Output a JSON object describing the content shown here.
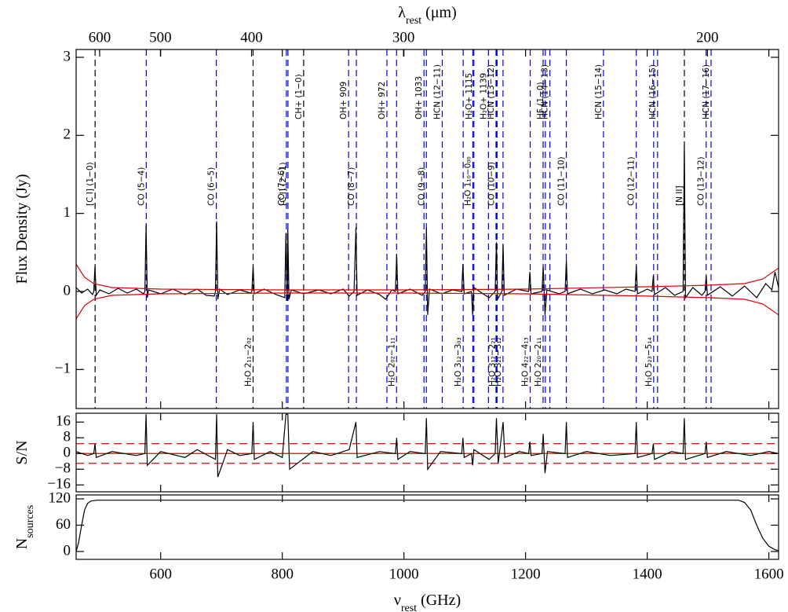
{
  "chart_data": [
    {
      "type": "line",
      "ylabel": "Flux Density (Jy)",
      "x2label": {
        "main": "λ",
        "sub": "rest",
        "unit": " (μm)"
      },
      "x2ticks": [
        600,
        500,
        400,
        300,
        200
      ],
      "ylim": [
        -1.5,
        3.1
      ],
      "yticks": [
        {
          "value": -1,
          "label": "−1"
        },
        0,
        1,
        2,
        3
      ],
      "series": [
        {
          "color": "#000000",
          "x": [
            461,
            470,
            480,
            488,
            490,
            492,
            494,
            500,
            515,
            530,
            545,
            560,
            572,
            574,
            576,
            578,
            580,
            600,
            620,
            640,
            660,
            675,
            688,
            690,
            692,
            694,
            697,
            710,
            730,
            748,
            750,
            752,
            754,
            770,
            790,
            804,
            806,
            808,
            809,
            811,
            815,
            835,
            860,
            880,
            900,
            910,
            918,
            921,
            923,
            940,
            960,
            970,
            980,
            986,
            988,
            990,
            1010,
            1030,
            1035,
            1037,
            1039,
            1042,
            1062,
            1080,
            1095,
            1097,
            1099,
            1111,
            1113,
            1115,
            1130,
            1140,
            1150,
            1152,
            1154,
            1161,
            1163,
            1165,
            1185,
            1205,
            1207,
            1209,
            1227,
            1229,
            1232,
            1235,
            1255,
            1265,
            1267,
            1269,
            1290,
            1310,
            1330,
            1350,
            1365,
            1380,
            1382,
            1384,
            1400,
            1408,
            1410,
            1412,
            1430,
            1445,
            1459,
            1461,
            1463,
            1475,
            1490,
            1495,
            1497,
            1499,
            1520,
            1540,
            1560,
            1580,
            1595,
            1605,
            1610,
            1616
          ],
          "values": [
            0.05,
            -0.02,
            0.03,
            -0.04,
            0,
            0.32,
            -0.05,
            0.02,
            -0.03,
            0.04,
            -0.02,
            0.03,
            -0.03,
            0,
            0.85,
            -0.08,
            0.02,
            -0.03,
            0.03,
            -0.04,
            0.03,
            -0.05,
            -0.06,
            0,
            0.9,
            -0.1,
            0.03,
            -0.04,
            0.02,
            -0.02,
            0,
            0.32,
            -0.03,
            0.03,
            -0.04,
            -0.08,
            0.75,
            -0.12,
            0.8,
            -0.1,
            0.02,
            -0.03,
            0.02,
            -0.03,
            0.03,
            -0.06,
            0,
            0.82,
            -0.05,
            0.02,
            -0.04,
            -0.1,
            0.02,
            0,
            0.47,
            -0.03,
            0.03,
            -0.05,
            0,
            0.82,
            -0.3,
            0.03,
            -0.03,
            0.02,
            0,
            0.35,
            -0.03,
            0,
            -0.3,
            0.05,
            -0.03,
            -0.08,
            0,
            0.63,
            -0.1,
            0,
            0.6,
            -0.05,
            0.03,
            0,
            0.25,
            -0.03,
            0,
            0.32,
            -0.3,
            0.02,
            -0.03,
            0,
            0.4,
            -0.03,
            0.03,
            -0.03,
            0.02,
            -0.03,
            0.03,
            0,
            0.33,
            -0.03,
            0.03,
            0,
            0.2,
            -0.04,
            0.05,
            -0.05,
            0,
            1.88,
            -0.08,
            0.05,
            -0.05,
            0,
            0.2,
            -0.05,
            0.06,
            -0.06,
            0.07,
            -0.08,
            0.1,
            0.02,
            0.25,
            0.05
          ]
        },
        {
          "color": "#e00000",
          "x": [
            461,
            475,
            490,
            520,
            600,
            800,
            1000,
            1200,
            1400,
            1500,
            1560,
            1590,
            1616
          ],
          "values": [
            0.35,
            0.18,
            0.1,
            0.05,
            0.03,
            0.02,
            0.02,
            0.03,
            0.06,
            0.08,
            0.1,
            0.16,
            0.3
          ]
        },
        {
          "color": "#e00000",
          "x": [
            461,
            475,
            490,
            520,
            600,
            800,
            1000,
            1200,
            1400,
            1500,
            1560,
            1590,
            1616
          ],
          "values": [
            -0.35,
            -0.18,
            -0.1,
            -0.05,
            -0.03,
            -0.02,
            -0.02,
            -0.03,
            -0.06,
            -0.08,
            -0.1,
            -0.16,
            -0.3
          ]
        }
      ],
      "lines": {
        "upper": [
          {
            "freq": 835.1,
            "label": "CH+ (1−0)",
            "color": "#000000"
          },
          {
            "freq": 909,
            "label": "OH+ 909",
            "color": "#0000e0"
          },
          {
            "freq": 972,
            "label": "OH+ 972",
            "color": "#0000e0"
          },
          {
            "freq": 1033,
            "label": "OH+ 1033",
            "color": "#0000e0"
          },
          {
            "freq": 1063,
            "label": "HCN (12−11)",
            "color": "#0000e0"
          },
          {
            "freq": 1115,
            "label": "H₂O+ 1115",
            "color": "#0000e0"
          },
          {
            "freq": 1139,
            "label": "H₂O+ 1139",
            "color": "#0000e0"
          },
          {
            "freq": 1151.4,
            "label": "HCN (13−12)",
            "color": "#0000e0"
          },
          {
            "freq": 1232.5,
            "label": "HF (1−0)",
            "color": "#0000e0"
          },
          {
            "freq": 1240,
            "label": "HCN (14−13)",
            "color": "#0000e0"
          },
          {
            "freq": 1328,
            "label": "HCN (15−14)",
            "color": "#0000e0"
          },
          {
            "freq": 1417,
            "label": "HCN (16−15)",
            "color": "#0000e0"
          },
          {
            "freq": 1505,
            "label": "HCN (17−16)",
            "color": "#0000e0"
          }
        ],
        "middle": [
          {
            "freq": 492.2,
            "label": "[C I] (1−0)",
            "color": "#000000"
          },
          {
            "freq": 576.3,
            "label": "CO (5−4)",
            "color": "#0000e0"
          },
          {
            "freq": 691.5,
            "label": "CO (6−5)",
            "color": "#0000e0"
          },
          {
            "freq": 806.7,
            "label": "CO (7−6)",
            "color": "#0000e0"
          },
          {
            "freq": 809.3,
            "label": "[C I] (2−1)",
            "color": "#0000e0"
          },
          {
            "freq": 921.8,
            "label": "CO (8−7)",
            "color": "#0000e0"
          },
          {
            "freq": 1036.9,
            "label": "CO (9−8)",
            "color": "#0000e0"
          },
          {
            "freq": 1113.3,
            "label": "H₂O 1₁₀−0₀₀",
            "color": "#0000e0"
          },
          {
            "freq": 1152,
            "label": "CO (10−9)",
            "color": "#0000e0"
          },
          {
            "freq": 1267,
            "label": "CO (11−10)",
            "color": "#0000e0"
          },
          {
            "freq": 1382,
            "label": "CO (12−11)",
            "color": "#0000e0"
          },
          {
            "freq": 1461.1,
            "label": "[N II]",
            "color": "#000000"
          },
          {
            "freq": 1496.9,
            "label": "CO (13−12)",
            "color": "#0000e0"
          }
        ],
        "lower": [
          {
            "freq": 752,
            "label": "H₂O 2₁₁−2₀₂",
            "color": "#000000"
          },
          {
            "freq": 987.9,
            "label": "H₂O 2₀₂−1₁₁",
            "color": "#0000e0"
          },
          {
            "freq": 1097.4,
            "label": "H₂O 3₁₂−3₀₃",
            "color": "#0000e0"
          },
          {
            "freq": 1153.1,
            "label": "H₂O 3₁₂−2₂₁",
            "color": "#0000e0"
          },
          {
            "freq": 1162.9,
            "label": "H₂O 3₂₁−3₁₂",
            "color": "#0000e0"
          },
          {
            "freq": 1207.6,
            "label": "H₂O 4₂₂−4₁₃",
            "color": "#0000e0"
          },
          {
            "freq": 1228.8,
            "label": "H₂O 2₂₀−2₁₁",
            "color": "#0000e0"
          },
          {
            "freq": 1410.6,
            "label": "H₂O 5₂₃−5₁₄",
            "color": "#0000e0"
          }
        ]
      }
    },
    {
      "type": "line",
      "ylabel": "S/N",
      "ylim": [
        -19.5,
        20.5
      ],
      "yticks": [
        {
          "value": -16,
          "label": "−16"
        },
        {
          "value": -8,
          "label": "−8"
        },
        0,
        8,
        16
      ],
      "hlines": [
        {
          "value": 5,
          "color": "#e00000",
          "dash": true
        },
        {
          "value": -5,
          "color": "#e00000",
          "dash": true
        },
        {
          "value": 0,
          "color": "#e00000",
          "dash": false
        }
      ],
      "series": [
        {
          "color": "#000000",
          "x": [
            461,
            480,
            490,
            492,
            494,
            520,
            560,
            574,
            576,
            578,
            600,
            640,
            660,
            690,
            692,
            694,
            710,
            730,
            750,
            752,
            754,
            780,
            800,
            806,
            809,
            812,
            850,
            880,
            910,
            921,
            923,
            960,
            986,
            988,
            990,
            1010,
            1035,
            1037,
            1039,
            1060,
            1095,
            1097,
            1099,
            1111,
            1113,
            1115,
            1140,
            1150,
            1152,
            1155,
            1163,
            1166,
            1190,
            1205,
            1207,
            1209,
            1227,
            1229,
            1232,
            1236,
            1265,
            1267,
            1269,
            1300,
            1340,
            1380,
            1382,
            1384,
            1408,
            1410,
            1412,
            1440,
            1459,
            1461,
            1463,
            1495,
            1497,
            1499,
            1530,
            1570,
            1600,
            1616
          ],
          "values": [
            1,
            -1,
            0,
            5,
            -2,
            1,
            -1,
            0,
            20,
            -6,
            1,
            -2,
            2,
            -3,
            20,
            -12,
            2,
            -1,
            0,
            16,
            -3,
            1,
            -2,
            20,
            20,
            -8,
            1,
            -1,
            2,
            16,
            -2,
            1,
            0,
            8,
            -3,
            1,
            0,
            18,
            -8,
            1,
            0,
            8,
            -2,
            0,
            -6,
            2,
            -3,
            0,
            18,
            -5,
            16,
            -2,
            1,
            0,
            6,
            -1,
            0,
            10,
            -10,
            1,
            0,
            16,
            -2,
            1,
            -1,
            0,
            16,
            -2,
            0,
            5,
            -3,
            1,
            0,
            18,
            -3,
            0,
            6,
            -2,
            1,
            -1,
            1,
            0
          ]
        }
      ]
    },
    {
      "type": "line",
      "ylabel": {
        "main": "N",
        "sub": "sources"
      },
      "xlabel": {
        "main": "ν",
        "sub": "rest",
        "unit": " (GHz)"
      },
      "xlim": [
        461,
        1616
      ],
      "xticks": [
        600,
        800,
        1000,
        1200,
        1400,
        1600
      ],
      "ylim": [
        -18,
        129
      ],
      "yticks": [
        0,
        60,
        120
      ],
      "series": [
        {
          "color": "#000000",
          "x": [
            461,
            465,
            470,
            475,
            480,
            485,
            495,
            1550,
            1560,
            1570,
            1580,
            1590,
            1600,
            1610,
            1616
          ],
          "values": [
            0,
            20,
            60,
            95,
            110,
            115,
            117,
            117,
            112,
            95,
            60,
            30,
            12,
            4,
            2
          ]
        }
      ]
    }
  ]
}
